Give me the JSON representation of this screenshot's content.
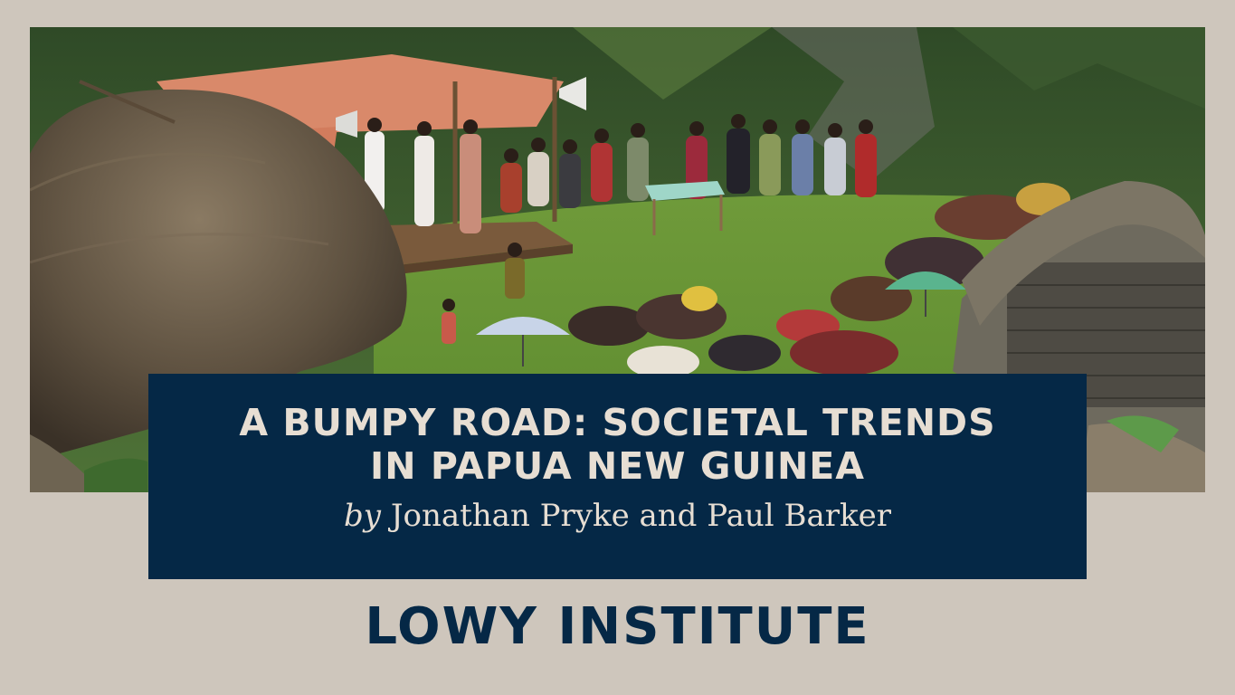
{
  "banner": {
    "title_line1": "A BUMPY ROAD: SOCIETAL TRENDS",
    "title_line2": "IN PAPUA NEW GUINEA",
    "byline_prefix": "by",
    "byline_authors": "Jonathan Pryke and Paul Barker"
  },
  "brand": {
    "name": "LOWY INSTITUTE"
  },
  "colors": {
    "page_background": "#cec6bc",
    "banner_background": "#052846",
    "banner_text": "#e7ded3",
    "brand_text": "#052846"
  }
}
